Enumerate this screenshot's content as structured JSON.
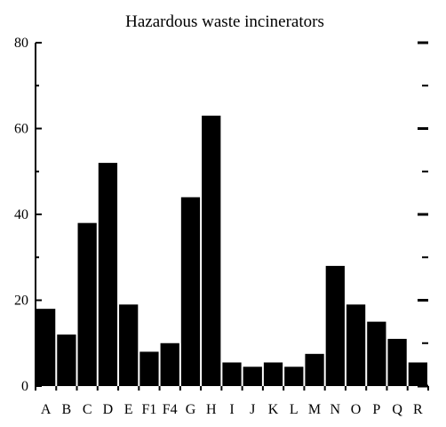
{
  "chart_data": {
    "type": "bar",
    "title": "Hazardous waste incinerators",
    "xlabel": "",
    "ylabel": "",
    "categories": [
      "A",
      "B",
      "C",
      "D",
      "E",
      "F1",
      "F4",
      "G",
      "H",
      "I",
      "J",
      "K",
      "L",
      "M",
      "N",
      "O",
      "P",
      "Q",
      "R"
    ],
    "values": [
      18,
      12,
      38,
      52,
      19,
      8,
      10,
      44,
      63,
      5.5,
      4.5,
      5.5,
      4.5,
      7.5,
      28,
      19,
      15,
      11,
      5.5
    ],
    "ylim": [
      0,
      80
    ],
    "yticks": [
      0,
      20,
      40,
      60,
      80
    ],
    "grid": false,
    "legend": "none",
    "bar_color": "#000000"
  }
}
